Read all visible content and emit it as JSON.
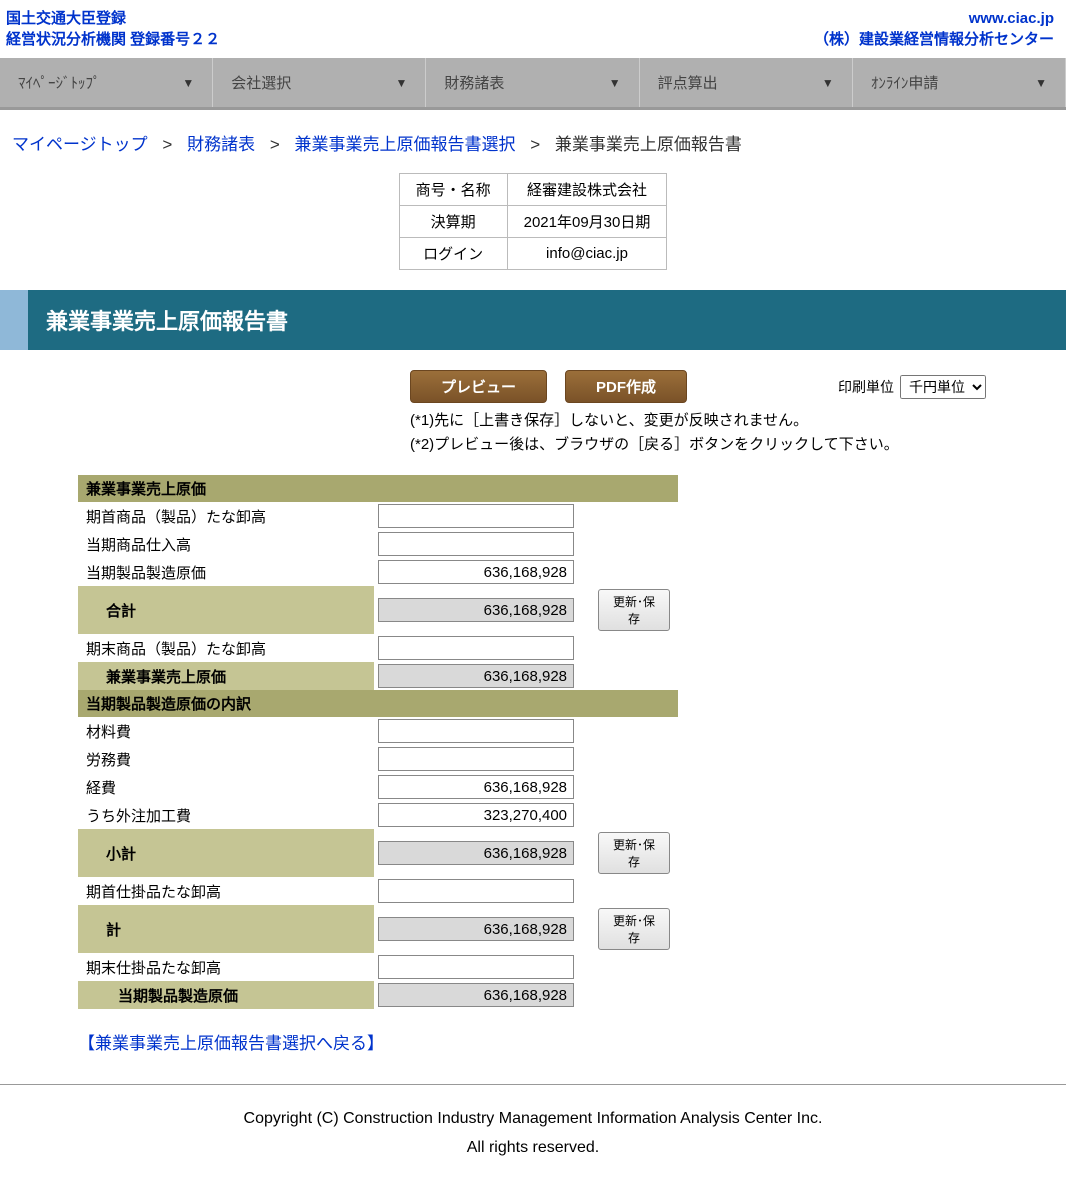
{
  "header": {
    "left_line1": "国土交通大臣登録",
    "left_line2": "経営状況分析機関 登録番号２２",
    "right_line1": "www.ciac.jp",
    "right_line2": "（株）建設業経営情報分析センター"
  },
  "nav": [
    {
      "label": "ﾏｲﾍﾟｰｼﾞﾄｯﾌﾟ"
    },
    {
      "label": "会社選択"
    },
    {
      "label": "財務諸表"
    },
    {
      "label": "評点算出"
    },
    {
      "label": "ｵﾝﾗｲﾝ申請"
    }
  ],
  "breadcrumb": {
    "items": [
      {
        "label": "マイページトップ",
        "link": true
      },
      {
        "label": "財務諸表",
        "link": true
      },
      {
        "label": "兼業事業売上原価報告書選択",
        "link": true
      },
      {
        "label": "兼業事業売上原価報告書",
        "link": false
      }
    ],
    "sep": ">"
  },
  "info": {
    "r1_label": "商号・名称",
    "r1_val": "経審建設株式会社",
    "r2_label": "決算期",
    "r2_val": "2021年09月30日期",
    "r3_label": "ログイン",
    "r3_val": "info@ciac.jp"
  },
  "title": "兼業事業売上原価報告書",
  "buttons": {
    "preview": "プレビュー",
    "pdf": "PDF作成",
    "update_save": "更新･保存"
  },
  "print_unit": {
    "label": "印刷単位",
    "options": [
      "千円単位"
    ],
    "selected": "千円単位"
  },
  "notes": {
    "n1": "(*1)先に［上書き保存］しないと、変更が反映されません。",
    "n2": "(*2)プレビュー後は、ブラウザの［戻る］ボタンをクリックして下さい。"
  },
  "section1_header": "兼業事業売上原価",
  "section2_header": "当期製品製造原価の内訳",
  "rows": {
    "r1": {
      "label": "期首商品（製品）たな卸高",
      "val": "",
      "calc": false
    },
    "r2": {
      "label": "当期商品仕入高",
      "val": "",
      "calc": false
    },
    "r3": {
      "label": "当期製品製造原価",
      "val": "636,168,928",
      "calc": false
    },
    "r4": {
      "label": "合計",
      "val": "636,168,928",
      "calc": true
    },
    "r5": {
      "label": "期末商品（製品）たな卸高",
      "val": "",
      "calc": false
    },
    "r6": {
      "label": "兼業事業売上原価",
      "val": "636,168,928",
      "calc": true
    },
    "r7": {
      "label": "材料費",
      "val": "",
      "calc": false
    },
    "r8": {
      "label": "労務費",
      "val": "",
      "calc": false
    },
    "r9": {
      "label": "経費",
      "val": "636,168,928",
      "calc": false
    },
    "r10": {
      "label": "うち外注加工費",
      "val": "323,270,400",
      "calc": false
    },
    "r11": {
      "label": "小計",
      "val": "636,168,928",
      "calc": true
    },
    "r12": {
      "label": "期首仕掛品たな卸高",
      "val": "",
      "calc": false
    },
    "r13": {
      "label": "計",
      "val": "636,168,928",
      "calc": true
    },
    "r14": {
      "label": "期末仕掛品たな卸高",
      "val": "",
      "calc": false
    },
    "r15": {
      "label": "当期製品製造原価",
      "val": "636,168,928",
      "calc": true
    }
  },
  "back_link": "【兼業事業売上原価報告書選択へ戻る】",
  "footer": {
    "line1": "Copyright (C) Construction Industry Management Information Analysis Center Inc.",
    "line2": "All rights reserved."
  },
  "colors": {
    "link": "#0033cc",
    "nav_bg": "#b0b0b0",
    "title_bg": "#1e6b82",
    "title_accent": "#8fb8d8",
    "header_row": "#a8a86f",
    "sub_row": "#c5c594",
    "calc_bg": "#d9d9d9",
    "btn_brown": "#8b5a2b"
  }
}
